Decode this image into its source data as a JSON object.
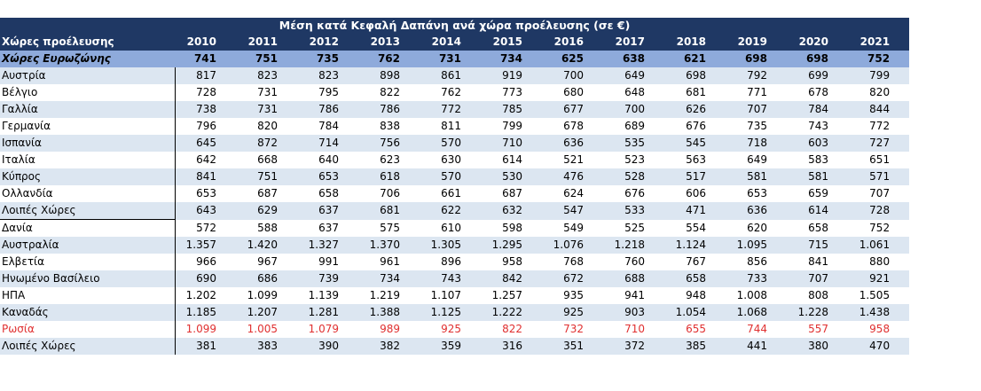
{
  "table": {
    "title": "Μέση κατά Κεφαλή Δαπάνη ανά χώρα προέλευσης (σε €)",
    "columns": [
      "Χώρες προέλευσης",
      "2010",
      "2011",
      "2012",
      "2013",
      "2014",
      "2015",
      "2016",
      "2017",
      "2018",
      "2019",
      "2020",
      "2021"
    ],
    "rows": [
      [
        "Χώρες Ευρωζώνης",
        "741",
        "751",
        "735",
        "762",
        "731",
        "734",
        "625",
        "638",
        "621",
        "698",
        "698",
        "752"
      ],
      [
        "Αυστρία",
        "817",
        "823",
        "823",
        "898",
        "861",
        "919",
        "700",
        "649",
        "698",
        "792",
        "699",
        "799"
      ],
      [
        "Βέλγιο",
        "728",
        "731",
        "795",
        "822",
        "762",
        "773",
        "680",
        "648",
        "681",
        "771",
        "678",
        "820"
      ],
      [
        "Γαλλία",
        "738",
        "731",
        "786",
        "786",
        "772",
        "785",
        "677",
        "700",
        "626",
        "707",
        "784",
        "844"
      ],
      [
        "Γερμανία",
        "796",
        "820",
        "784",
        "838",
        "811",
        "799",
        "678",
        "689",
        "676",
        "735",
        "743",
        "772"
      ],
      [
        "Ισπανία",
        "645",
        "872",
        "714",
        "756",
        "570",
        "710",
        "636",
        "535",
        "545",
        "718",
        "603",
        "727"
      ],
      [
        "Ιταλία",
        "642",
        "668",
        "640",
        "623",
        "630",
        "614",
        "521",
        "523",
        "563",
        "649",
        "583",
        "651"
      ],
      [
        "Κύπρος",
        "841",
        "751",
        "653",
        "618",
        "570",
        "530",
        "476",
        "528",
        "517",
        "581",
        "581",
        "571"
      ],
      [
        "Ολλανδία",
        "653",
        "687",
        "658",
        "706",
        "661",
        "687",
        "624",
        "676",
        "606",
        "653",
        "659",
        "707"
      ],
      [
        "Λοιπές Χώρες",
        "643",
        "629",
        "637",
        "681",
        "622",
        "632",
        "547",
        "533",
        "471",
        "636",
        "614",
        "728"
      ],
      [
        "Δανία",
        "572",
        "588",
        "637",
        "575",
        "610",
        "598",
        "549",
        "525",
        "554",
        "620",
        "658",
        "752"
      ],
      [
        "Αυστραλία",
        "1.357",
        "1.420",
        "1.327",
        "1.370",
        "1.305",
        "1.295",
        "1.076",
        "1.218",
        "1.124",
        "1.095",
        "715",
        "1.061"
      ],
      [
        "Ελβετία",
        "966",
        "967",
        "991",
        "961",
        "896",
        "958",
        "768",
        "760",
        "767",
        "856",
        "841",
        "880"
      ],
      [
        "Ηνωμένο Βασίλειο",
        "690",
        "686",
        "739",
        "734",
        "743",
        "842",
        "672",
        "688",
        "658",
        "733",
        "707",
        "921"
      ],
      [
        "ΗΠΑ",
        "1.202",
        "1.099",
        "1.139",
        "1.219",
        "1.107",
        "1.257",
        "935",
        "941",
        "948",
        "1.008",
        "808",
        "1.505"
      ],
      [
        "Καναδάς",
        "1.185",
        "1.207",
        "1.281",
        "1.388",
        "1.125",
        "1.222",
        "925",
        "903",
        "1.054",
        "1.068",
        "1.228",
        "1.438"
      ],
      [
        "Ρωσία",
        "1.099",
        "1.005",
        "1.079",
        "989",
        "925",
        "822",
        "732",
        "710",
        "655",
        "744",
        "557",
        "958"
      ],
      [
        "Λοιπές Χώρες",
        "381",
        "383",
        "390",
        "382",
        "359",
        "316",
        "351",
        "372",
        "385",
        "441",
        "380",
        "470"
      ]
    ]
  }
}
